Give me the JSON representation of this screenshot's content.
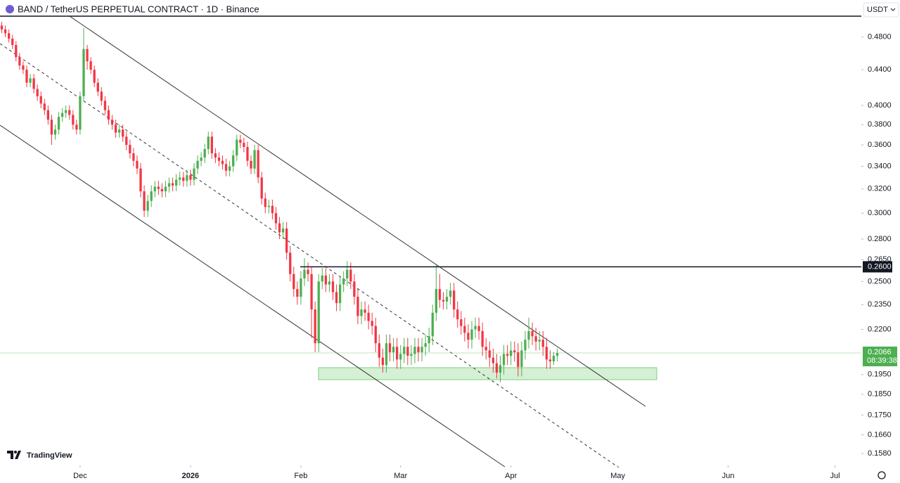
{
  "chart_data": {
    "type": "candlestick",
    "title": "BAND / TetherUS PERPETUAL CONTRACT · 1D · Binance",
    "currency": "USDT",
    "brand": "TradingView",
    "log_scale": true,
    "grid": false,
    "up_color": "#4caf50",
    "down_color": "#f23645",
    "ylim": [
      0.153,
      0.53
    ],
    "xlim": [
      -53.5,
      188.4
    ],
    "yticks": [
      {
        "value": 0.48,
        "label": "0.4800"
      },
      {
        "value": 0.44,
        "label": "0.4400"
      },
      {
        "value": 0.4,
        "label": "0.4000"
      },
      {
        "value": 0.38,
        "label": "0.3800"
      },
      {
        "value": 0.36,
        "label": "0.3600"
      },
      {
        "value": 0.34,
        "label": "0.3400"
      },
      {
        "value": 0.32,
        "label": "0.3200"
      },
      {
        "value": 0.3,
        "label": "0.3000"
      },
      {
        "value": 0.28,
        "label": "0.2800"
      },
      {
        "value": 0.265,
        "label": "0.2650"
      },
      {
        "value": 0.25,
        "label": "0.2500"
      },
      {
        "value": 0.235,
        "label": "0.2350"
      },
      {
        "value": 0.22,
        "label": "0.2200"
      },
      {
        "value": 0.195,
        "label": "0.1950"
      },
      {
        "value": 0.185,
        "label": "0.1850"
      },
      {
        "value": 0.175,
        "label": "0.1750"
      },
      {
        "value": 0.166,
        "label": "0.1660"
      },
      {
        "value": 0.158,
        "label": "0.1580"
      }
    ],
    "xticks": [
      {
        "value": -31,
        "label": "Dec"
      },
      {
        "value": 0,
        "label": "2026"
      },
      {
        "value": 31,
        "label": "Feb"
      },
      {
        "value": 59,
        "label": "Mar"
      },
      {
        "value": 90,
        "label": "Apr"
      },
      {
        "value": 120,
        "label": "May"
      },
      {
        "value": 151,
        "label": "Jun"
      },
      {
        "value": 181,
        "label": "Jul"
      }
    ],
    "hline": {
      "value": 0.26,
      "label": "0.2600"
    },
    "last_price": {
      "value": 0.2066,
      "label": "0.2066"
    },
    "countdown": "08:39:38",
    "x": [
      -53,
      -52,
      -51,
      -50,
      -49,
      -48,
      -47,
      -46,
      -45,
      -44,
      -43,
      -42,
      -41,
      -40,
      -39,
      -38,
      -37,
      -36,
      -35,
      -34,
      -33,
      -32,
      -31,
      -30,
      -29,
      -28,
      -27,
      -26,
      -25,
      -24,
      -23,
      -22,
      -21,
      -20,
      -19,
      -18,
      -17,
      -16,
      -15,
      -14,
      -13,
      -12,
      -11,
      -10,
      -9,
      -8,
      -7,
      -6,
      -5,
      -4,
      -3,
      -2,
      -1,
      0,
      1,
      2,
      3,
      4,
      5,
      6,
      7,
      8,
      9,
      10,
      11,
      12,
      13,
      14,
      15,
      16,
      17,
      18,
      19,
      20,
      21,
      22,
      23,
      24,
      25,
      26,
      27,
      28,
      29,
      30,
      31,
      32,
      33,
      34,
      35,
      36,
      37,
      38,
      39,
      40,
      41,
      42,
      43,
      44,
      45,
      46,
      47,
      48,
      49,
      50,
      51,
      52,
      53,
      54,
      55,
      56,
      57,
      58,
      59,
      60,
      61,
      62,
      63,
      64,
      65,
      66,
      67,
      68,
      69,
      70,
      71,
      72,
      73,
      74,
      75,
      76,
      77,
      78,
      79,
      80,
      81,
      82,
      83,
      84,
      85,
      86,
      87,
      88,
      89,
      90,
      91,
      92,
      93,
      94,
      95,
      96,
      97,
      98,
      99,
      100,
      101,
      102,
      103
    ],
    "open": [
      0.495,
      0.49,
      0.485,
      0.478,
      0.47,
      0.455,
      0.445,
      0.44,
      0.425,
      0.43,
      0.418,
      0.41,
      0.402,
      0.395,
      0.385,
      0.37,
      0.375,
      0.388,
      0.392,
      0.395,
      0.39,
      0.38,
      0.375,
      0.41,
      0.465,
      0.45,
      0.44,
      0.425,
      0.415,
      0.405,
      0.395,
      0.385,
      0.38,
      0.372,
      0.375,
      0.368,
      0.36,
      0.352,
      0.345,
      0.338,
      0.318,
      0.302,
      0.31,
      0.318,
      0.322,
      0.32,
      0.318,
      0.322,
      0.325,
      0.323,
      0.328,
      0.33,
      0.327,
      0.332,
      0.328,
      0.338,
      0.345,
      0.348,
      0.356,
      0.368,
      0.352,
      0.348,
      0.345,
      0.342,
      0.336,
      0.34,
      0.35,
      0.365,
      0.362,
      0.358,
      0.345,
      0.338,
      0.355,
      0.33,
      0.312,
      0.305,
      0.306,
      0.3,
      0.292,
      0.285,
      0.288,
      0.27,
      0.255,
      0.245,
      0.24,
      0.252,
      0.258,
      0.255,
      0.232,
      0.212,
      0.25,
      0.254,
      0.248,
      0.25,
      0.243,
      0.236,
      0.248,
      0.252,
      0.258,
      0.25,
      0.24,
      0.228,
      0.232,
      0.23,
      0.225,
      0.222,
      0.212,
      0.204,
      0.2,
      0.212,
      0.207,
      0.21,
      0.203,
      0.206,
      0.21,
      0.205,
      0.206,
      0.21,
      0.207,
      0.21,
      0.212,
      0.216,
      0.23,
      0.245,
      0.238,
      0.237,
      0.24,
      0.244,
      0.232,
      0.226,
      0.222,
      0.218,
      0.214,
      0.22,
      0.222,
      0.219,
      0.21,
      0.208,
      0.204,
      0.201,
      0.196,
      0.2,
      0.206,
      0.205,
      0.208,
      0.207,
      0.199,
      0.208,
      0.214,
      0.219,
      0.216,
      0.213,
      0.214,
      0.21,
      0.203,
      0.202,
      0.205
    ],
    "high": [
      0.5,
      0.495,
      0.49,
      0.483,
      0.475,
      0.46,
      0.45,
      0.445,
      0.435,
      0.435,
      0.423,
      0.415,
      0.407,
      0.4,
      0.39,
      0.38,
      0.393,
      0.397,
      0.4,
      0.4,
      0.395,
      0.385,
      0.415,
      0.492,
      0.47,
      0.455,
      0.445,
      0.43,
      0.42,
      0.41,
      0.4,
      0.39,
      0.385,
      0.38,
      0.38,
      0.373,
      0.365,
      0.357,
      0.35,
      0.343,
      0.323,
      0.315,
      0.323,
      0.327,
      0.327,
      0.325,
      0.327,
      0.33,
      0.33,
      0.333,
      0.335,
      0.335,
      0.337,
      0.337,
      0.343,
      0.35,
      0.353,
      0.361,
      0.373,
      0.373,
      0.357,
      0.353,
      0.35,
      0.347,
      0.345,
      0.355,
      0.37,
      0.37,
      0.367,
      0.363,
      0.35,
      0.36,
      0.36,
      0.335,
      0.317,
      0.311,
      0.311,
      0.305,
      0.297,
      0.293,
      0.293,
      0.275,
      0.26,
      0.25,
      0.257,
      0.266,
      0.263,
      0.26,
      0.237,
      0.255,
      0.259,
      0.259,
      0.255,
      0.255,
      0.248,
      0.253,
      0.257,
      0.264,
      0.263,
      0.255,
      0.245,
      0.237,
      0.237,
      0.235,
      0.23,
      0.227,
      0.217,
      0.209,
      0.217,
      0.217,
      0.215,
      0.215,
      0.211,
      0.215,
      0.215,
      0.211,
      0.215,
      0.215,
      0.215,
      0.217,
      0.221,
      0.235,
      0.261,
      0.255,
      0.243,
      0.245,
      0.249,
      0.249,
      0.237,
      0.231,
      0.227,
      0.223,
      0.225,
      0.227,
      0.227,
      0.224,
      0.215,
      0.213,
      0.209,
      0.206,
      0.205,
      0.211,
      0.211,
      0.213,
      0.213,
      0.212,
      0.213,
      0.219,
      0.227,
      0.224,
      0.221,
      0.219,
      0.219,
      0.215,
      0.208,
      0.207,
      0.209
    ],
    "low": [
      0.485,
      0.48,
      0.473,
      0.465,
      0.45,
      0.44,
      0.435,
      0.42,
      0.42,
      0.413,
      0.405,
      0.397,
      0.39,
      0.38,
      0.36,
      0.365,
      0.37,
      0.383,
      0.387,
      0.385,
      0.375,
      0.37,
      0.37,
      0.405,
      0.44,
      0.435,
      0.42,
      0.41,
      0.4,
      0.39,
      0.38,
      0.375,
      0.367,
      0.367,
      0.363,
      0.355,
      0.347,
      0.34,
      0.333,
      0.313,
      0.297,
      0.297,
      0.305,
      0.313,
      0.315,
      0.313,
      0.313,
      0.317,
      0.318,
      0.318,
      0.323,
      0.322,
      0.322,
      0.323,
      0.323,
      0.333,
      0.34,
      0.343,
      0.351,
      0.347,
      0.343,
      0.34,
      0.337,
      0.331,
      0.331,
      0.335,
      0.345,
      0.357,
      0.353,
      0.34,
      0.333,
      0.333,
      0.325,
      0.307,
      0.3,
      0.3,
      0.295,
      0.287,
      0.28,
      0.28,
      0.265,
      0.25,
      0.24,
      0.235,
      0.235,
      0.247,
      0.25,
      0.215,
      0.207,
      0.207,
      0.245,
      0.243,
      0.243,
      0.238,
      0.231,
      0.231,
      0.243,
      0.247,
      0.245,
      0.235,
      0.223,
      0.223,
      0.225,
      0.22,
      0.217,
      0.207,
      0.199,
      0.196,
      0.196,
      0.202,
      0.202,
      0.198,
      0.198,
      0.201,
      0.2,
      0.2,
      0.201,
      0.202,
      0.202,
      0.205,
      0.207,
      0.211,
      0.225,
      0.233,
      0.232,
      0.232,
      0.235,
      0.227,
      0.221,
      0.217,
      0.213,
      0.209,
      0.209,
      0.215,
      0.214,
      0.205,
      0.203,
      0.199,
      0.196,
      0.193,
      0.191,
      0.195,
      0.2,
      0.2,
      0.202,
      0.194,
      0.194,
      0.203,
      0.209,
      0.211,
      0.208,
      0.208,
      0.205,
      0.198,
      0.198,
      0.2,
      0.202
    ],
    "close": [
      0.49,
      0.485,
      0.478,
      0.47,
      0.455,
      0.445,
      0.44,
      0.425,
      0.43,
      0.418,
      0.41,
      0.402,
      0.395,
      0.385,
      0.37,
      0.375,
      0.388,
      0.392,
      0.395,
      0.39,
      0.38,
      0.375,
      0.41,
      0.465,
      0.45,
      0.44,
      0.425,
      0.415,
      0.405,
      0.395,
      0.385,
      0.38,
      0.372,
      0.375,
      0.368,
      0.36,
      0.352,
      0.345,
      0.338,
      0.318,
      0.302,
      0.31,
      0.318,
      0.322,
      0.32,
      0.318,
      0.322,
      0.325,
      0.323,
      0.328,
      0.33,
      0.327,
      0.332,
      0.328,
      0.338,
      0.345,
      0.348,
      0.356,
      0.368,
      0.352,
      0.348,
      0.345,
      0.342,
      0.336,
      0.34,
      0.35,
      0.365,
      0.362,
      0.358,
      0.345,
      0.338,
      0.355,
      0.33,
      0.312,
      0.305,
      0.306,
      0.3,
      0.292,
      0.285,
      0.288,
      0.27,
      0.255,
      0.245,
      0.24,
      0.252,
      0.258,
      0.255,
      0.232,
      0.212,
      0.25,
      0.254,
      0.248,
      0.25,
      0.243,
      0.236,
      0.248,
      0.252,
      0.258,
      0.25,
      0.24,
      0.228,
      0.232,
      0.23,
      0.225,
      0.222,
      0.212,
      0.204,
      0.2,
      0.212,
      0.207,
      0.21,
      0.203,
      0.206,
      0.21,
      0.205,
      0.206,
      0.21,
      0.207,
      0.21,
      0.212,
      0.216,
      0.23,
      0.245,
      0.238,
      0.237,
      0.24,
      0.244,
      0.232,
      0.226,
      0.222,
      0.218,
      0.214,
      0.22,
      0.222,
      0.219,
      0.21,
      0.208,
      0.204,
      0.201,
      0.196,
      0.2,
      0.206,
      0.205,
      0.208,
      0.207,
      0.199,
      0.208,
      0.214,
      0.219,
      0.216,
      0.213,
      0.214,
      0.21,
      0.203,
      0.202,
      0.205,
      0.2066
    ]
  }
}
